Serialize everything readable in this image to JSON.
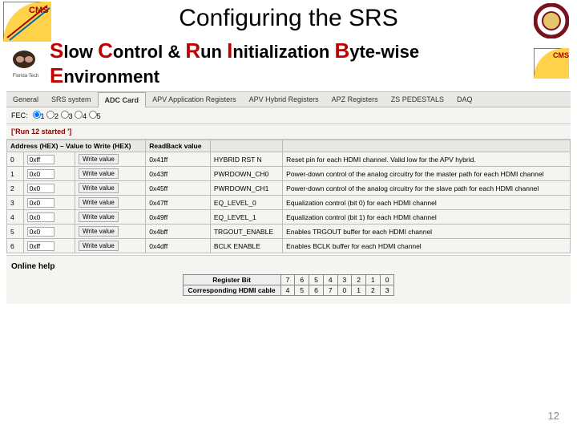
{
  "slide": {
    "title": "Configuring the SRS",
    "page_number": "12"
  },
  "scribe_title": {
    "S": "S",
    "low": "low ",
    "C": "C",
    "ontrol": "ontrol & ",
    "R": "R",
    "un": "un ",
    "I": "I",
    "nit": "nitialization ",
    "B": "B",
    "yte": "yte-wise ",
    "E": "E",
    "nv": "nvironment"
  },
  "tabs": [
    "General",
    "SRS system",
    "ADC Card",
    "APV Application Registers",
    "APV Hybrid Registers",
    "APZ Registers",
    "ZS PEDESTALS",
    "DAQ"
  ],
  "active_tab_index": 2,
  "fec": {
    "label": "FEC:",
    "options": [
      "1",
      "2",
      "3",
      "4",
      "5"
    ],
    "selected": 0
  },
  "status_text": "['Run 12 started ']",
  "columns": [
    "Address (HEX) – Value to Write (HEX)",
    "ReadBack value",
    "",
    ""
  ],
  "rows": [
    {
      "idx": "0",
      "val": "0xff",
      "rb": "0x41ff",
      "name": "HYBRID RST N",
      "desc": "Reset pin for each HDMI channel. Valid low for the APV hybrid."
    },
    {
      "idx": "1",
      "val": "0x0",
      "rb": "0x43ff",
      "name": "PWRDOWN_CH0",
      "desc": "Power-down control of the analog circuitry for the master path for each HDMI channel"
    },
    {
      "idx": "2",
      "val": "0x0",
      "rb": "0x45ff",
      "name": "PWRDOWN_CH1",
      "desc": "Power-down control of the analog circuitry for the slave path for each HDMI channel"
    },
    {
      "idx": "3",
      "val": "0x0",
      "rb": "0x47ff",
      "name": "EQ_LEVEL_0",
      "desc": "Equalization control (bit 0) for each HDMI channel"
    },
    {
      "idx": "4",
      "val": "0x0",
      "rb": "0x49ff",
      "name": "EQ_LEVEL_1",
      "desc": "Equalization control (bit 1) for each HDMI channel"
    },
    {
      "idx": "5",
      "val": "0x0",
      "rb": "0x4bff",
      "name": "TRGOUT_ENABLE",
      "desc": "Enables TRGOUT buffer for each HDMI channel"
    },
    {
      "idx": "6",
      "val": "0xff",
      "rb": "0x4dff",
      "name": "BCLK ENABLE",
      "desc": "Enables BCLK buffer for each HDMI channel"
    }
  ],
  "write_btn": "Write value",
  "help_label": "Online help",
  "bits": {
    "row1_label": "Register Bit",
    "row1": [
      "7",
      "6",
      "5",
      "4",
      "3",
      "2",
      "1",
      "0"
    ],
    "row2_label": "Corresponding HDMI cable",
    "row2": [
      "4",
      "5",
      "6",
      "7",
      "0",
      "1",
      "2",
      "3"
    ]
  },
  "colors": {
    "red": "#c00000",
    "panel": "#f4f4f0"
  }
}
